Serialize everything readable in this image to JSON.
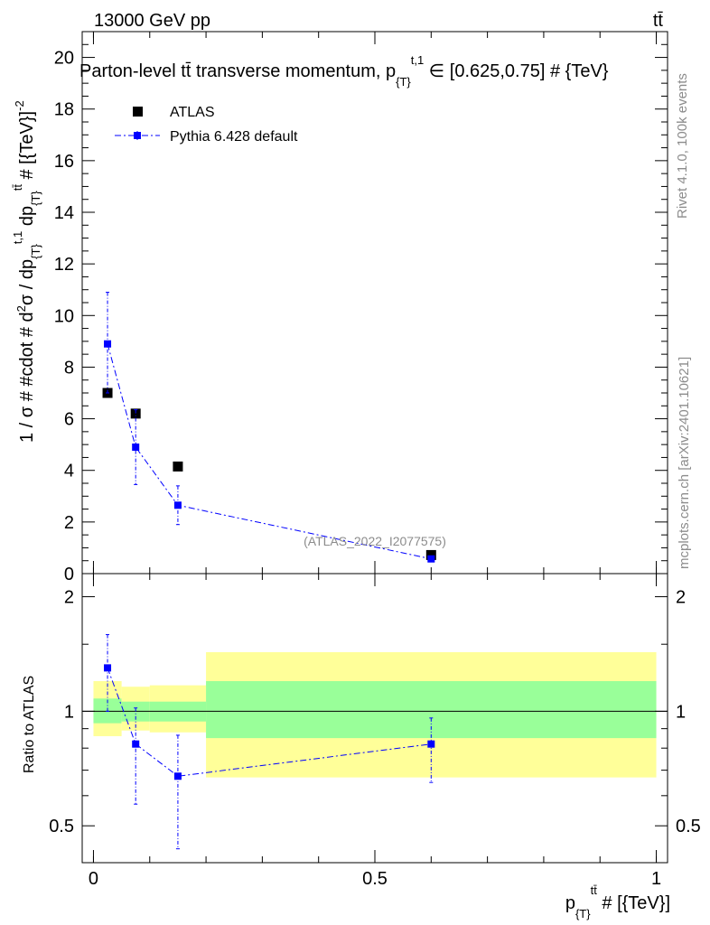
{
  "header": {
    "left": "13000 GeV pp",
    "right": "tt̄"
  },
  "side": {
    "rivet": "Rivet 4.1.0,  100k events",
    "mcplots": "mcplots.cern.ch [arXiv:2401.10621]"
  },
  "colors": {
    "atlas": "#000000",
    "pythia": "#0000ff",
    "band_stat": "#99ff99",
    "band_total": "#ffff99"
  },
  "chart_data": [
    {
      "panel": "main",
      "type": "scatter",
      "title": "Parton-level t̄t transverse momentum, p_{T}^{t,1} ∈ [0.625,0.75] # {TeV}",
      "title_text": "Parton-level tt̄ transverse momentum, p",
      "title_sub": "{T}",
      "title_sup": "t,1",
      "title_tail": " ∈ [0.625,0.75] # {TeV}",
      "ylabel": "1 / σ # #cdot # d²σ / dp_{T}^{t,1} dp_{T}^{tt̄} # [{TeV}⁻²]",
      "ylabel_text": "1 / σ # #cdot # d",
      "ylabel_2": "2",
      "ylabel_mid": "σ / dp",
      "ylabel_T": "{T}",
      "ylabel_t1": "t,1",
      "ylabel_dp": " dp",
      "ylabel_tt": "tt̄",
      "ylabel_end": " # [{TeV}]",
      "ylabel_m2": "-2",
      "watermark": "(ATLAS_2022_I2077575)",
      "xlim": [
        -0.02,
        1.02
      ],
      "ylim": [
        0,
        21
      ],
      "yticks": [
        0,
        2,
        4,
        6,
        8,
        10,
        12,
        14,
        16,
        18,
        20
      ],
      "ytick_labels": [
        "0",
        "2",
        "4",
        "6",
        "8",
        "10",
        "12",
        "14",
        "16",
        "18",
        "20"
      ],
      "legend": [
        {
          "name": "ATLAS",
          "marker": "square",
          "style": "points"
        },
        {
          "name": "Pythia 6.428 default",
          "marker": "square",
          "style": "dash-dot line"
        }
      ],
      "series": [
        {
          "name": "ATLAS",
          "x": [
            0.025,
            0.075,
            0.15,
            0.6
          ],
          "y": [
            7.0,
            6.2,
            4.15,
            0.72
          ],
          "yerr": [
            0.1,
            0.1,
            0.1,
            0.04
          ]
        },
        {
          "name": "Pythia 6.428 default",
          "x": [
            0.025,
            0.075,
            0.15,
            0.6
          ],
          "y": [
            8.9,
            4.9,
            2.65,
            0.57
          ],
          "yerr_lo": [
            1.9,
            1.45,
            0.75,
            0.1
          ],
          "yerr_hi": [
            2.0,
            1.45,
            0.75,
            0.1
          ]
        }
      ]
    },
    {
      "panel": "ratio",
      "type": "line",
      "ylabel": "Ratio to ATLAS",
      "xlabel": "p_{T}^{tt̄} # [{TeV}]",
      "xlabel_p": "p",
      "xlabel_T": "{T}",
      "xlabel_tt": "tt̄",
      "xlabel_tail": " # [{TeV}]",
      "xlim": [
        -0.02,
        1.02
      ],
      "ylim": [
        0.4,
        2.3
      ],
      "yscale": "log",
      "yticks": [
        0.5,
        1,
        2
      ],
      "ytick_labels": [
        "0.5",
        "1",
        "2"
      ],
      "xticks": [
        0,
        0.5,
        1
      ],
      "xtick_labels": [
        "0",
        "0.5",
        "1"
      ],
      "reference": 1,
      "bands": [
        {
          "xlo": 0.0,
          "xhi": 0.05,
          "stat_lo": 0.93,
          "stat_hi": 1.08,
          "tot_lo": 0.86,
          "tot_hi": 1.2
        },
        {
          "xlo": 0.05,
          "xhi": 0.1,
          "stat_lo": 0.94,
          "stat_hi": 1.06,
          "tot_lo": 0.89,
          "tot_hi": 1.16
        },
        {
          "xlo": 0.1,
          "xhi": 0.2,
          "stat_lo": 0.94,
          "stat_hi": 1.06,
          "tot_lo": 0.88,
          "tot_hi": 1.17
        },
        {
          "xlo": 0.2,
          "xhi": 1.0,
          "stat_lo": 0.85,
          "stat_hi": 1.2,
          "tot_lo": 0.67,
          "tot_hi": 1.43
        }
      ],
      "series": [
        {
          "name": "Pythia 6.428 default",
          "x": [
            0.025,
            0.075,
            0.15,
            0.6
          ],
          "y": [
            1.3,
            0.82,
            0.675,
            0.82
          ],
          "yerr_lo": [
            0.3,
            0.25,
            0.24,
            0.17
          ],
          "yerr_hi": [
            0.29,
            0.2,
            0.19,
            0.14
          ]
        }
      ]
    }
  ]
}
